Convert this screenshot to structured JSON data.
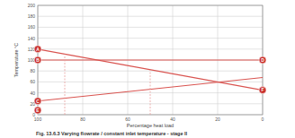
{
  "chart_data": {
    "type": "line",
    "title": "Fig. 13.6.3 Varying flowrate / constant inlet temperature - stage II",
    "x_label": "Percentage heat load",
    "y_label": "Temperature °C",
    "xlim": [
      100,
      0
    ],
    "xticks": [
      100,
      80,
      60,
      40,
      20,
      0
    ],
    "ylim": [
      0,
      200
    ],
    "yticks": [
      0,
      20,
      40,
      60,
      80,
      100,
      120,
      140,
      160,
      180,
      200
    ],
    "grid": true,
    "series": [
      {
        "color": "#d9534f",
        "x": [
          100,
          0
        ],
        "values": [
          120,
          45
        ],
        "line_style": "solid"
      },
      {
        "color": "#d9534f",
        "x": [
          100,
          0
        ],
        "values": [
          100,
          100
        ],
        "line_style": "solid"
      },
      {
        "color": "#d9534f",
        "x": [
          100,
          0
        ],
        "values": [
          25,
          68
        ],
        "line_style": "solid"
      },
      {
        "color": "#e8a09d",
        "x": [
          88,
          88
        ],
        "values": [
          0,
          111
        ],
        "line_style": "dashed"
      },
      {
        "color": "#e8a09d",
        "x": [
          50,
          50
        ],
        "values": [
          0,
          82
        ],
        "line_style": "dashed"
      }
    ],
    "annotations": [
      {
        "label": "A",
        "x": 100,
        "y": 120
      },
      {
        "label": "B",
        "x": 100,
        "y": 100
      },
      {
        "label": "C",
        "x": 100,
        "y": 25
      },
      {
        "label": "E",
        "x": 100,
        "y": 8
      },
      {
        "label": "D",
        "x": 0,
        "y": 100
      },
      {
        "label": "F",
        "x": 0,
        "y": 45
      }
    ]
  }
}
